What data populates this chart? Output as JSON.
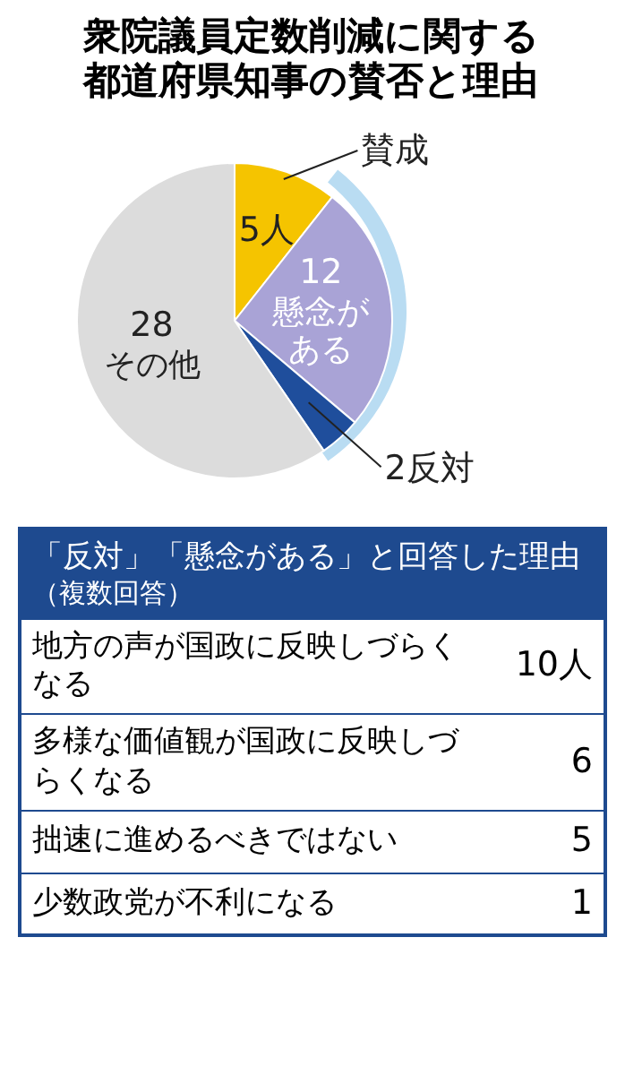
{
  "chart_data": [
    {
      "type": "pie",
      "title": "衆院議員定数削減に関する都道府県知事の賛否と理由",
      "categories": [
        "賛成",
        "懸念がある",
        "反対",
        "その他"
      ],
      "values": [
        5,
        12,
        2,
        28
      ],
      "value_labels": [
        "5人",
        "12",
        "2",
        "28"
      ],
      "colors": [
        "#f5c400",
        "#a9a3d6",
        "#1f4e9c",
        "#dcdcdc"
      ]
    },
    {
      "type": "other",
      "title": "「反対」「懸念がある」と回答した理由",
      "subtitle": "（複数回答）",
      "categories": [
        "地方の声が国政に反映しづらくなる",
        "多様な価値観が国政に反映しづらくなる",
        "拙速に進めるべきではない",
        "少数政党が不利になる"
      ],
      "values": [
        10,
        6,
        5,
        1
      ],
      "value_labels": [
        "10人",
        "6",
        "5",
        "1"
      ]
    }
  ]
}
